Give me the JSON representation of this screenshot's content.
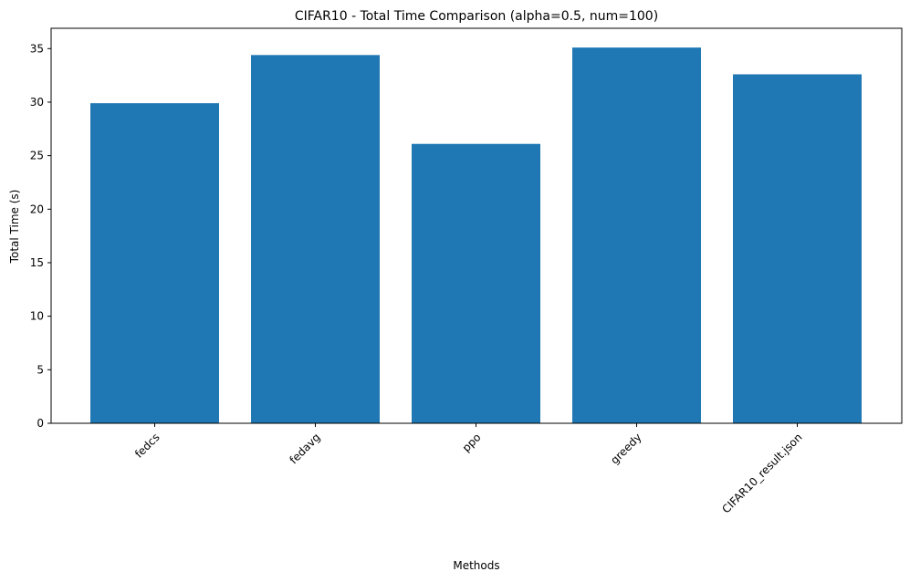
{
  "chart_data": {
    "type": "bar",
    "title": "CIFAR10 - Total Time Comparison (alpha=0.5, num=100)",
    "xlabel": "Methods",
    "ylabel": "Total Time (s)",
    "categories": [
      "fedcs",
      "fedavg",
      "ppo",
      "greedy",
      "CIFAR10_result.json"
    ],
    "values": [
      29.9,
      34.4,
      26.1,
      35.1,
      32.6
    ],
    "ylim": [
      0,
      36.9
    ],
    "yticks": [
      0,
      5,
      10,
      15,
      20,
      25,
      30,
      35
    ],
    "xtick_rotation": 45,
    "bar_color": "#1f77b4",
    "grid": false,
    "legend": "none"
  }
}
